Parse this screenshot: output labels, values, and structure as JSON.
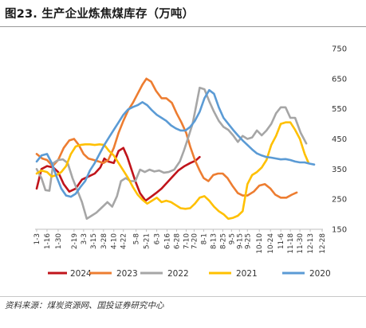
{
  "chart_data": {
    "type": "line",
    "title": "图23. 生产企业炼焦煤库存（万吨）",
    "source": "资料来源：煤炭资源网、国投证券研究中心",
    "ylim": [
      150,
      750
    ],
    "yticks": [
      150,
      250,
      350,
      450,
      550,
      650,
      750
    ],
    "y_axis_side": "right",
    "grid": false,
    "legend_position": "bottom",
    "x_tick_labels": [
      "1-3",
      "1-16",
      "1-30",
      "2-19",
      "3-3",
      "3-15",
      "3-28",
      "4-10",
      "4-22",
      "5-8",
      "5-21",
      "6-3",
      "6-16",
      "6-28",
      "7-10",
      "7-20",
      "8-1",
      "8-13",
      "8-25",
      "9-5",
      "9-15",
      "9-25",
      "10-10",
      "10-24",
      "11-6",
      "11-18",
      "11-30",
      "12-13",
      "12-28"
    ],
    "x_range": [
      1,
      363
    ],
    "x_tick_days": [
      3,
      16,
      30,
      50,
      62,
      74,
      87,
      100,
      112,
      128,
      141,
      154,
      167,
      179,
      191,
      201,
      213,
      225,
      237,
      248,
      258,
      268,
      283,
      297,
      310,
      322,
      334,
      347,
      362
    ],
    "series": [
      {
        "name": "2024",
        "color": "#c0141b",
        "points": [
          [
            3,
            285
          ],
          [
            9,
            350
          ],
          [
            16,
            360
          ],
          [
            24,
            355
          ],
          [
            30,
            340
          ],
          [
            37,
            300
          ],
          [
            44,
            275
          ],
          [
            52,
            285
          ],
          [
            60,
            315
          ],
          [
            68,
            325
          ],
          [
            76,
            335
          ],
          [
            83,
            355
          ],
          [
            88,
            385
          ],
          [
            93,
            375
          ],
          [
            100,
            370
          ],
          [
            106,
            410
          ],
          [
            112,
            420
          ],
          [
            117,
            390
          ],
          [
            122,
            350
          ],
          [
            127,
            310
          ],
          [
            133,
            270
          ],
          [
            140,
            245
          ],
          [
            147,
            258
          ],
          [
            153,
            270
          ],
          [
            160,
            285
          ],
          [
            167,
            305
          ],
          [
            174,
            325
          ],
          [
            181,
            345
          ],
          [
            189,
            360
          ],
          [
            196,
            370
          ],
          [
            203,
            378
          ],
          [
            208,
            390
          ]
        ]
      },
      {
        "name": "2023",
        "color": "#ed7d31",
        "points": [
          [
            3,
            400
          ],
          [
            10,
            385
          ],
          [
            16,
            380
          ],
          [
            23,
            360
          ],
          [
            30,
            380
          ],
          [
            37,
            420
          ],
          [
            44,
            445
          ],
          [
            50,
            450
          ],
          [
            56,
            430
          ],
          [
            62,
            400
          ],
          [
            68,
            385
          ],
          [
            75,
            380
          ],
          [
            81,
            375
          ],
          [
            87,
            370
          ],
          [
            93,
            380
          ],
          [
            100,
            420
          ],
          [
            106,
            470
          ],
          [
            112,
            510
          ],
          [
            118,
            545
          ],
          [
            124,
            570
          ],
          [
            130,
            600
          ],
          [
            136,
            630
          ],
          [
            141,
            650
          ],
          [
            147,
            640
          ],
          [
            153,
            610
          ],
          [
            160,
            585
          ],
          [
            166,
            585
          ],
          [
            173,
            570
          ],
          [
            179,
            535
          ],
          [
            185,
            505
          ],
          [
            191,
            470
          ],
          [
            196,
            425
          ],
          [
            202,
            380
          ],
          [
            208,
            345
          ],
          [
            213,
            320
          ],
          [
            219,
            310
          ],
          [
            225,
            330
          ],
          [
            231,
            335
          ],
          [
            237,
            335
          ],
          [
            243,
            320
          ],
          [
            249,
            295
          ],
          [
            256,
            270
          ],
          [
            262,
            262
          ],
          [
            268,
            262
          ],
          [
            276,
            275
          ],
          [
            283,
            295
          ],
          [
            290,
            300
          ],
          [
            297,
            285
          ],
          [
            303,
            265
          ],
          [
            310,
            255
          ],
          [
            317,
            255
          ],
          [
            324,
            265
          ],
          [
            330,
            272
          ]
        ]
      },
      {
        "name": "2022",
        "color": "#a6a6a6",
        "points": [
          [
            3,
            350
          ],
          [
            9,
            320
          ],
          [
            14,
            280
          ],
          [
            19,
            278
          ],
          [
            24,
            370
          ],
          [
            30,
            380
          ],
          [
            36,
            382
          ],
          [
            42,
            370
          ],
          [
            48,
            320
          ],
          [
            54,
            280
          ],
          [
            60,
            240
          ],
          [
            66,
            185
          ],
          [
            72,
            195
          ],
          [
            78,
            205
          ],
          [
            84,
            220
          ],
          [
            92,
            240
          ],
          [
            98,
            225
          ],
          [
            104,
            260
          ],
          [
            109,
            310
          ],
          [
            115,
            320
          ],
          [
            121,
            310
          ],
          [
            127,
            310
          ],
          [
            133,
            348
          ],
          [
            139,
            340
          ],
          [
            145,
            348
          ],
          [
            151,
            342
          ],
          [
            157,
            345
          ],
          [
            163,
            338
          ],
          [
            169,
            340
          ],
          [
            176,
            348
          ],
          [
            183,
            375
          ],
          [
            188,
            410
          ],
          [
            193,
            450
          ],
          [
            199,
            500
          ],
          [
            204,
            565
          ],
          [
            208,
            620
          ],
          [
            214,
            615
          ],
          [
            220,
            575
          ],
          [
            226,
            540
          ],
          [
            232,
            510
          ],
          [
            238,
            490
          ],
          [
            244,
            480
          ],
          [
            250,
            462
          ],
          [
            256,
            440
          ],
          [
            262,
            460
          ],
          [
            268,
            450
          ],
          [
            274,
            455
          ],
          [
            280,
            478
          ],
          [
            286,
            462
          ],
          [
            292,
            478
          ],
          [
            298,
            500
          ],
          [
            304,
            535
          ],
          [
            310,
            555
          ],
          [
            316,
            555
          ],
          [
            322,
            520
          ],
          [
            328,
            520
          ],
          [
            335,
            470
          ],
          [
            342,
            435
          ]
        ]
      },
      {
        "name": "2021",
        "color": "#ffc000",
        "points": [
          [
            3,
            335
          ],
          [
            9,
            345
          ],
          [
            16,
            340
          ],
          [
            22,
            325
          ],
          [
            28,
            330
          ],
          [
            34,
            340
          ],
          [
            40,
            360
          ],
          [
            46,
            400
          ],
          [
            52,
            425
          ],
          [
            58,
            430
          ],
          [
            64,
            432
          ],
          [
            70,
            432
          ],
          [
            76,
            430
          ],
          [
            82,
            432
          ],
          [
            88,
            430
          ],
          [
            94,
            410
          ],
          [
            100,
            395
          ],
          [
            106,
            370
          ],
          [
            112,
            345
          ],
          [
            118,
            320
          ],
          [
            124,
            290
          ],
          [
            130,
            265
          ],
          [
            136,
            248
          ],
          [
            142,
            235
          ],
          [
            148,
            245
          ],
          [
            154,
            255
          ],
          [
            160,
            240
          ],
          [
            166,
            245
          ],
          [
            172,
            240
          ],
          [
            178,
            230
          ],
          [
            184,
            220
          ],
          [
            190,
            218
          ],
          [
            196,
            220
          ],
          [
            202,
            235
          ],
          [
            208,
            255
          ],
          [
            214,
            260
          ],
          [
            220,
            245
          ],
          [
            226,
            225
          ],
          [
            232,
            210
          ],
          [
            238,
            200
          ],
          [
            244,
            185
          ],
          [
            250,
            188
          ],
          [
            256,
            195
          ],
          [
            262,
            210
          ],
          [
            268,
            300
          ],
          [
            274,
            330
          ],
          [
            280,
            340
          ],
          [
            286,
            355
          ],
          [
            292,
            380
          ],
          [
            298,
            430
          ],
          [
            304,
            460
          ],
          [
            310,
            500
          ],
          [
            316,
            505
          ],
          [
            322,
            505
          ],
          [
            328,
            480
          ],
          [
            334,
            450
          ],
          [
            340,
            400
          ],
          [
            345,
            370
          ]
        ]
      },
      {
        "name": "2020",
        "color": "#5b9bd5",
        "points": [
          [
            3,
            375
          ],
          [
            9,
            395
          ],
          [
            16,
            400
          ],
          [
            22,
            370
          ],
          [
            28,
            325
          ],
          [
            34,
            285
          ],
          [
            40,
            262
          ],
          [
            46,
            258
          ],
          [
            52,
            268
          ],
          [
            58,
            290
          ],
          [
            64,
            310
          ],
          [
            70,
            345
          ],
          [
            76,
            370
          ],
          [
            82,
            400
          ],
          [
            88,
            430
          ],
          [
            94,
            455
          ],
          [
            100,
            480
          ],
          [
            106,
            505
          ],
          [
            112,
            530
          ],
          [
            118,
            548
          ],
          [
            124,
            556
          ],
          [
            130,
            562
          ],
          [
            136,
            572
          ],
          [
            142,
            562
          ],
          [
            148,
            545
          ],
          [
            154,
            530
          ],
          [
            160,
            520
          ],
          [
            166,
            510
          ],
          [
            172,
            495
          ],
          [
            178,
            485
          ],
          [
            184,
            478
          ],
          [
            190,
            478
          ],
          [
            196,
            490
          ],
          [
            202,
            510
          ],
          [
            208,
            540
          ],
          [
            214,
            585
          ],
          [
            220,
            612
          ],
          [
            226,
            600
          ],
          [
            232,
            555
          ],
          [
            238,
            520
          ],
          [
            244,
            500
          ],
          [
            250,
            480
          ],
          [
            256,
            462
          ],
          [
            262,
            445
          ],
          [
            268,
            430
          ],
          [
            274,
            415
          ],
          [
            280,
            402
          ],
          [
            286,
            395
          ],
          [
            292,
            390
          ],
          [
            298,
            388
          ],
          [
            304,
            385
          ],
          [
            310,
            382
          ],
          [
            316,
            383
          ],
          [
            322,
            380
          ],
          [
            328,
            375
          ],
          [
            334,
            372
          ],
          [
            340,
            372
          ],
          [
            346,
            368
          ],
          [
            352,
            365
          ]
        ]
      }
    ]
  }
}
